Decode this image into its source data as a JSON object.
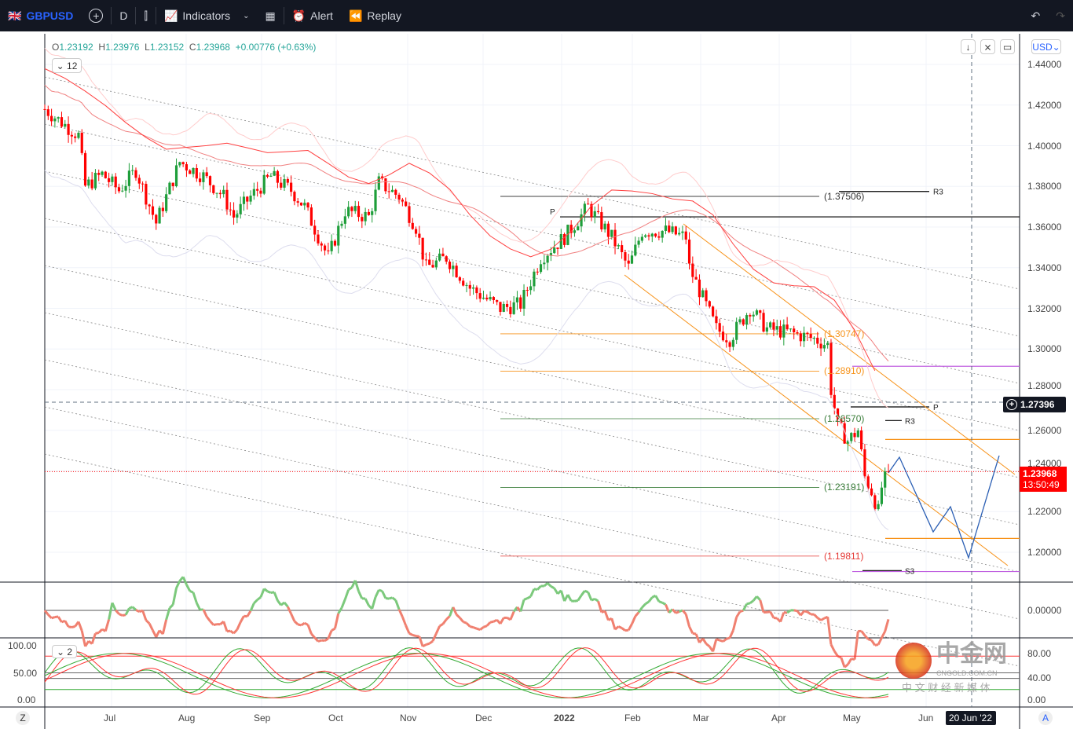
{
  "toolbar": {
    "symbol": "GBPUSD",
    "interval": "D",
    "indicators": "Indicators",
    "alert": "Alert",
    "replay": "Replay"
  },
  "legend": {
    "o_label": "O",
    "o": "1.23192",
    "h_label": "H",
    "h": "1.23976",
    "l_label": "L",
    "l": "1.23152",
    "c_label": "C",
    "c": "1.23968",
    "change": "+0.00776 (+0.63%)",
    "collapsed_count": "12",
    "pane2_count": "2"
  },
  "currency": "USD",
  "price_axis": [
    "1.44000",
    "1.42000",
    "1.40000",
    "1.38000",
    "1.36000",
    "1.34000",
    "1.32000",
    "1.30000",
    "1.28000",
    "1.26000",
    "1.24000",
    "1.22000",
    "1.20000"
  ],
  "crosshair_price": "1.27396",
  "last_price": "1.23968",
  "countdown": "13:50:49",
  "macd_axis": "0.00000",
  "stoch_axis_left": [
    "100.00",
    "50.00",
    "0.00"
  ],
  "stoch_axis_right": [
    "80.00",
    "40.00",
    "0.00"
  ],
  "time_axis": [
    "Jul",
    "Aug",
    "Sep",
    "Oct",
    "Nov",
    "Dec",
    "2022",
    "Feb",
    "Mar",
    "Apr",
    "May",
    "Jun"
  ],
  "crosshair_date": "20 Jun '22",
  "timezone_btn": "Z",
  "auto_btn": "A",
  "levels": [
    {
      "label": "(1.37506)",
      "price": 1.37506,
      "color": "#333333"
    },
    {
      "label": "(1.30747)",
      "price": 1.30747,
      "color": "#f7931a"
    },
    {
      "label": "(1.28910)",
      "price": 1.2891,
      "color": "#f7931a"
    },
    {
      "label": "(1.26570)",
      "price": 1.2657,
      "color": "#3a7d3a"
    },
    {
      "label": "(1.23191)",
      "price": 1.23191,
      "color": "#3a7d3a"
    },
    {
      "label": "(1.19811)",
      "price": 1.19811,
      "color": "#e53935"
    }
  ],
  "pivot_labels": {
    "p1": "P",
    "r3a": "R3",
    "p2": "P",
    "r3b": "R3",
    "s3": "S3"
  },
  "watermark": {
    "brand": "中金网",
    "url": "CNGOLD.COM.CN",
    "slogan": "中 文 财 经 新 媒 体"
  },
  "colors": {
    "up": "#1e9e3a",
    "down": "#ff0000",
    "accent": "#2962ff"
  },
  "chart_data": {
    "type": "candlestick",
    "symbol": "GBPUSD",
    "ylim": [
      1.19,
      1.445
    ],
    "anchors": [
      [
        0,
        1.418
      ],
      [
        10,
        1.405
      ],
      [
        12,
        1.38
      ],
      [
        17,
        1.386
      ],
      [
        22,
        1.378
      ],
      [
        27,
        1.388
      ],
      [
        33,
        1.362
      ],
      [
        40,
        1.392
      ],
      [
        47,
        1.385
      ],
      [
        53,
        1.375
      ],
      [
        56,
        1.365
      ],
      [
        61,
        1.375
      ],
      [
        67,
        1.385
      ],
      [
        73,
        1.378
      ],
      [
        77,
        1.37
      ],
      [
        84,
        1.345
      ],
      [
        89,
        1.368
      ],
      [
        96,
        1.365
      ],
      [
        99,
        1.382
      ],
      [
        105,
        1.375
      ],
      [
        110,
        1.36
      ],
      [
        113,
        1.34
      ],
      [
        119,
        1.345
      ],
      [
        126,
        1.33
      ],
      [
        135,
        1.32
      ],
      [
        141,
        1.322
      ],
      [
        147,
        1.345
      ],
      [
        154,
        1.355
      ],
      [
        161,
        1.37
      ],
      [
        168,
        1.355
      ],
      [
        173,
        1.34
      ],
      [
        177,
        1.358
      ],
      [
        184,
        1.358
      ],
      [
        190,
        1.355
      ],
      [
        191,
        1.34
      ],
      [
        195,
        1.325
      ],
      [
        199,
        1.31
      ],
      [
        203,
        1.305
      ],
      [
        209,
        1.32
      ],
      [
        214,
        1.31
      ],
      [
        221,
        1.308
      ],
      [
        228,
        1.305
      ],
      [
        232,
        1.302
      ],
      [
        233,
        1.28
      ],
      [
        235,
        1.262
      ],
      [
        238,
        1.255
      ],
      [
        241,
        1.26
      ],
      [
        243,
        1.237
      ],
      [
        245,
        1.23
      ],
      [
        247,
        1.22
      ],
      [
        248,
        1.232
      ],
      [
        250,
        1.2397
      ]
    ]
  }
}
